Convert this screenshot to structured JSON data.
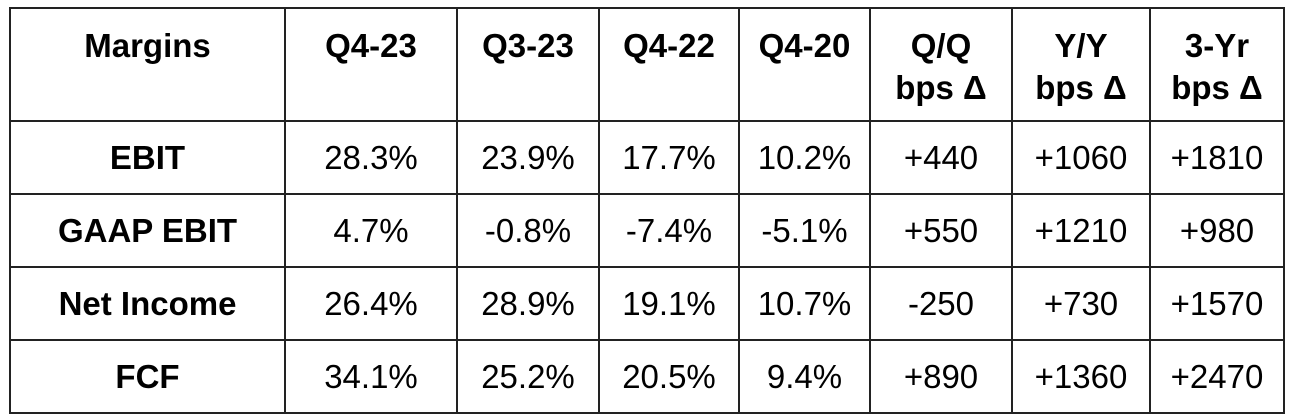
{
  "table": {
    "header": [
      "Margins",
      "Q4-23",
      "Q3-23",
      "Q4-22",
      "Q4-20",
      "Q/Q\nbps Δ",
      "Y/Y\nbps Δ",
      "3-Yr\nbps Δ"
    ],
    "rows": [
      [
        "EBIT",
        "28.3%",
        "23.9%",
        "17.7%",
        "10.2%",
        "+440",
        "+1060",
        "+1810"
      ],
      [
        "GAAP EBIT",
        "4.7%",
        "-0.8%",
        "-7.4%",
        "-5.1%",
        "+550",
        "+1210",
        "+980"
      ],
      [
        "Net Income",
        "26.4%",
        "28.9%",
        "19.1%",
        "10.7%",
        "-250",
        "+730",
        "+1570"
      ],
      [
        "FCF",
        "34.1%",
        "25.2%",
        "20.5%",
        "9.4%",
        "+890",
        "+1360",
        "+2470"
      ]
    ]
  }
}
